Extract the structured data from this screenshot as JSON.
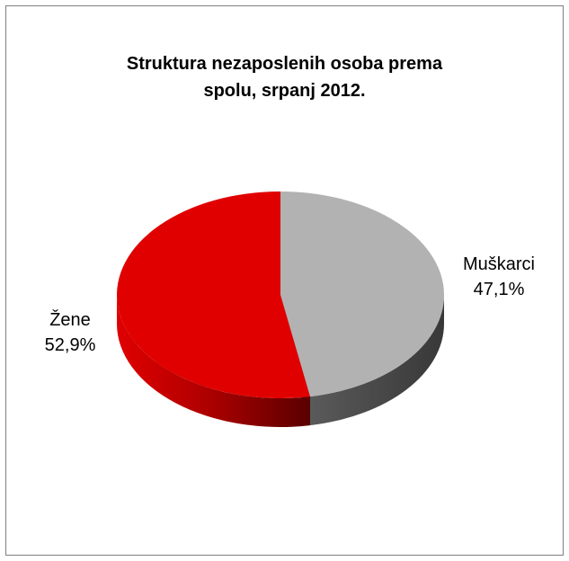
{
  "chart_data": {
    "type": "pie",
    "title_lines": [
      "Struktura nezaposlenih  osoba prema",
      "spolu, srpanj 2012."
    ],
    "slices": [
      {
        "label": "Muškarci",
        "value": 47.1,
        "value_label": "47,1%",
        "color": "#b2b2b2",
        "side_color": "#4a4a4a"
      },
      {
        "label": "Žene",
        "value": 52.9,
        "value_label": "52,9%",
        "color": "#e00000",
        "side_color": "#7a0000"
      }
    ],
    "legend": "none",
    "style": "3d"
  }
}
